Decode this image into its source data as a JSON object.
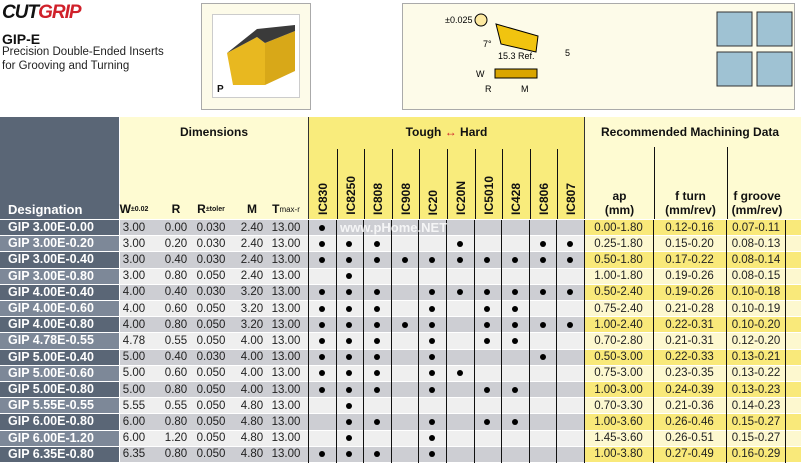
{
  "header": {
    "logo_cut": "CUT",
    "logo_grip": "GRIP",
    "title": "GIP-E",
    "subtitle_1": "Precision Double-Ended Inserts",
    "subtitle_2": "for Grooving and Turning",
    "image_label": "P",
    "diagram": {
      "tolerance": "±0.025",
      "angle": "7°",
      "ref": "15.3 Ref.",
      "dim5": "5",
      "w": "W",
      "r": "R",
      "m": "M"
    }
  },
  "table": {
    "designation_header": "Designation",
    "dimensions_header": "Dimensions",
    "dim_cols": [
      {
        "main": "W",
        "sup": "±0.02"
      },
      {
        "main": "R",
        "sup": ""
      },
      {
        "main": "R",
        "sup": "±toler"
      },
      {
        "main": "M",
        "sup": ""
      },
      {
        "main": "T",
        "sub": "max-r"
      }
    ],
    "grades_header_left": "Tough",
    "grades_header_arrow": "↔",
    "grades_header_right": "Hard",
    "grades": [
      "IC830",
      "IC8250",
      "IC808",
      "IC908",
      "IC20",
      "IC20N",
      "IC5010",
      "IC428",
      "IC806",
      "IC807"
    ],
    "machining_header": "Recommended  Machining Data",
    "mach_cols": [
      {
        "l1": "ap",
        "l2": "(mm)"
      },
      {
        "l1": "f turn",
        "l2": "(mm/rev)"
      },
      {
        "l1": "f groove",
        "l2": "(mm/rev)"
      }
    ],
    "rows": [
      {
        "d": "GIP 3.00E-0.00",
        "dims": [
          "3.00",
          "0.00",
          "0.030",
          "2.40",
          "13.00"
        ],
        "g": [
          1,
          0,
          0,
          0,
          0,
          0,
          0,
          0,
          0,
          0
        ],
        "m": [
          "0.00-1.80",
          "0.12-0.16",
          "0.07-0.11"
        ]
      },
      {
        "d": "GIP 3.00E-0.20",
        "dims": [
          "3.00",
          "0.20",
          "0.030",
          "2.40",
          "13.00"
        ],
        "g": [
          1,
          1,
          1,
          0,
          0,
          1,
          0,
          0,
          1,
          1
        ],
        "m": [
          "0.25-1.80",
          "0.15-0.20",
          "0.08-0.13"
        ]
      },
      {
        "d": "GIP 3.00E-0.40",
        "dims": [
          "3.00",
          "0.40",
          "0.030",
          "2.40",
          "13.00"
        ],
        "g": [
          1,
          1,
          1,
          1,
          1,
          1,
          1,
          1,
          1,
          1
        ],
        "m": [
          "0.50-1.80",
          "0.17-0.22",
          "0.08-0.14"
        ]
      },
      {
        "d": "GIP 3.00E-0.80",
        "dims": [
          "3.00",
          "0.80",
          "0.050",
          "2.40",
          "13.00"
        ],
        "g": [
          0,
          1,
          0,
          0,
          0,
          0,
          0,
          0,
          0,
          0
        ],
        "m": [
          "1.00-1.80",
          "0.19-0.26",
          "0.08-0.15"
        ]
      },
      {
        "d": "GIP 4.00E-0.40",
        "dims": [
          "4.00",
          "0.40",
          "0.030",
          "3.20",
          "13.00"
        ],
        "g": [
          1,
          1,
          1,
          0,
          1,
          1,
          1,
          1,
          1,
          1
        ],
        "m": [
          "0.50-2.40",
          "0.19-0.26",
          "0.10-0.18"
        ]
      },
      {
        "d": "GIP 4.00E-0.60",
        "dims": [
          "4.00",
          "0.60",
          "0.050",
          "3.20",
          "13.00"
        ],
        "g": [
          1,
          1,
          1,
          0,
          1,
          0,
          1,
          1,
          0,
          0
        ],
        "m": [
          "0.75-2.40",
          "0.21-0.28",
          "0.10-0.19"
        ]
      },
      {
        "d": "GIP 4.00E-0.80",
        "dims": [
          "4.00",
          "0.80",
          "0.050",
          "3.20",
          "13.00"
        ],
        "g": [
          1,
          1,
          1,
          1,
          1,
          0,
          1,
          1,
          1,
          1
        ],
        "m": [
          "1.00-2.40",
          "0.22-0.31",
          "0.10-0.20"
        ]
      },
      {
        "d": "GIP 4.78E-0.55",
        "dims": [
          "4.78",
          "0.55",
          "0.050",
          "4.00",
          "13.00"
        ],
        "g": [
          1,
          1,
          1,
          0,
          1,
          0,
          1,
          1,
          0,
          0
        ],
        "m": [
          "0.70-2.80",
          "0.21-0.31",
          "0.12-0.20"
        ]
      },
      {
        "d": "GIP 5.00E-0.40",
        "dims": [
          "5.00",
          "0.40",
          "0.030",
          "4.00",
          "13.00"
        ],
        "g": [
          1,
          1,
          1,
          0,
          1,
          0,
          0,
          0,
          1,
          0
        ],
        "m": [
          "0.50-3.00",
          "0.22-0.33",
          "0.13-0.21"
        ]
      },
      {
        "d": "GIP 5.00E-0.60",
        "dims": [
          "5.00",
          "0.60",
          "0.050",
          "4.00",
          "13.00"
        ],
        "g": [
          1,
          1,
          1,
          0,
          1,
          1,
          0,
          0,
          0,
          0
        ],
        "m": [
          "0.75-3.00",
          "0.23-0.35",
          "0.13-0.22"
        ]
      },
      {
        "d": "GIP 5.00E-0.80",
        "dims": [
          "5.00",
          "0.80",
          "0.050",
          "4.00",
          "13.00"
        ],
        "g": [
          1,
          1,
          1,
          0,
          1,
          0,
          1,
          1,
          0,
          0
        ],
        "m": [
          "1.00-3.00",
          "0.24-0.39",
          "0.13-0.23"
        ]
      },
      {
        "d": "GIP 5.55E-0.55",
        "dims": [
          "5.55",
          "0.55",
          "0.050",
          "4.80",
          "13.00"
        ],
        "g": [
          0,
          1,
          0,
          0,
          0,
          0,
          0,
          0,
          0,
          0
        ],
        "m": [
          "0.70-3.30",
          "0.21-0.36",
          "0.14-0.23"
        ]
      },
      {
        "d": "GIP 6.00E-0.80",
        "dims": [
          "6.00",
          "0.80",
          "0.050",
          "4.80",
          "13.00"
        ],
        "g": [
          0,
          1,
          1,
          0,
          1,
          0,
          1,
          1,
          0,
          0
        ],
        "m": [
          "1.00-3.60",
          "0.26-0.46",
          "0.15-0.27"
        ]
      },
      {
        "d": "GIP 6.00E-1.20",
        "dims": [
          "6.00",
          "1.20",
          "0.050",
          "4.80",
          "13.00"
        ],
        "g": [
          0,
          1,
          0,
          0,
          1,
          0,
          0,
          0,
          0,
          0
        ],
        "m": [
          "1.45-3.60",
          "0.26-0.51",
          "0.15-0.27"
        ]
      },
      {
        "d": "GIP 6.35E-0.80",
        "dims": [
          "6.35",
          "0.80",
          "0.050",
          "4.80",
          "13.00"
        ],
        "g": [
          1,
          1,
          1,
          0,
          1,
          0,
          0,
          0,
          0,
          0
        ],
        "m": [
          "1.00-3.80",
          "0.27-0.49",
          "0.16-0.29"
        ]
      }
    ]
  },
  "watermark": "www.pHome.NET",
  "colors": {
    "slate": "#5a6676",
    "slate_light": "#7d8898",
    "yellow": "#f9e97a",
    "yellow_light": "#fdf8cf",
    "cream": "#fefbd2",
    "gray_dark": "#cdced3",
    "gray_light": "#efefef",
    "brand_red": "#d0202a"
  }
}
